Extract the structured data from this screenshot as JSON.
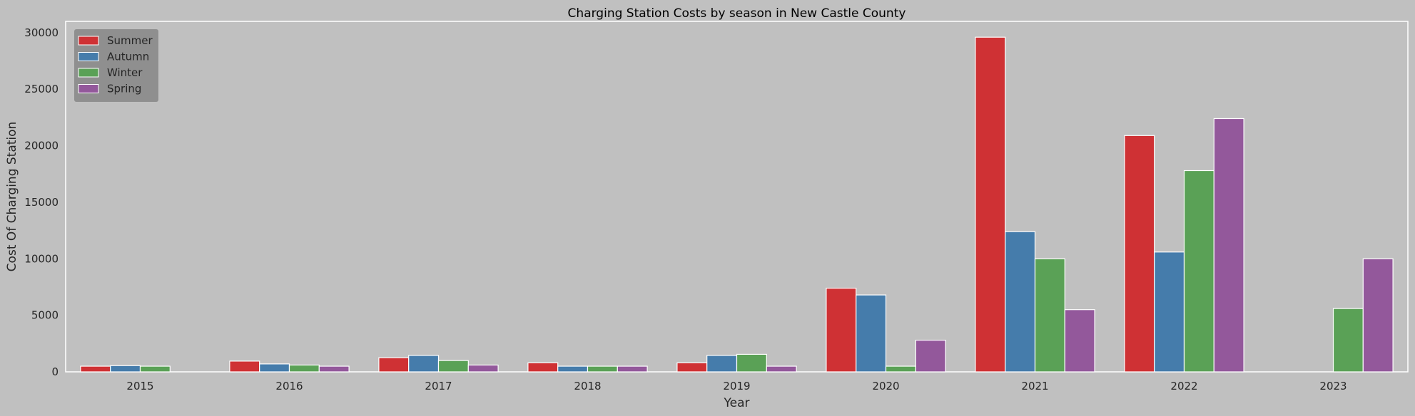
{
  "chart_data": {
    "type": "bar",
    "title": "Charging Station Costs by season in New Castle County",
    "xlabel": "Year",
    "ylabel": "Cost Of Charging Station",
    "categories": [
      "2015",
      "2016",
      "2017",
      "2018",
      "2019",
      "2020",
      "2021",
      "2022",
      "2023"
    ],
    "series": [
      {
        "name": "Summer",
        "color": "#cf3134",
        "values": [
          500,
          950,
          1250,
          800,
          800,
          7400,
          29600,
          20900,
          null
        ]
      },
      {
        "name": "Autumn",
        "color": "#457cab",
        "values": [
          550,
          700,
          1450,
          500,
          1450,
          6800,
          12400,
          10600,
          null
        ]
      },
      {
        "name": "Winter",
        "color": "#5aa156",
        "values": [
          500,
          600,
          1000,
          500,
          1550,
          500,
          10000,
          17800,
          5600
        ]
      },
      {
        "name": "Spring",
        "color": "#93589b",
        "values": [
          null,
          500,
          600,
          500,
          500,
          2800,
          5500,
          22400,
          10000
        ]
      }
    ],
    "ylim": [
      0,
      31000
    ],
    "yticks": [
      0,
      5000,
      10000,
      15000,
      20000,
      25000,
      30000
    ],
    "grid": false,
    "legend_position": "top-left",
    "background_color": "#c0c0c0",
    "legend_background": "#8f8f8f"
  }
}
